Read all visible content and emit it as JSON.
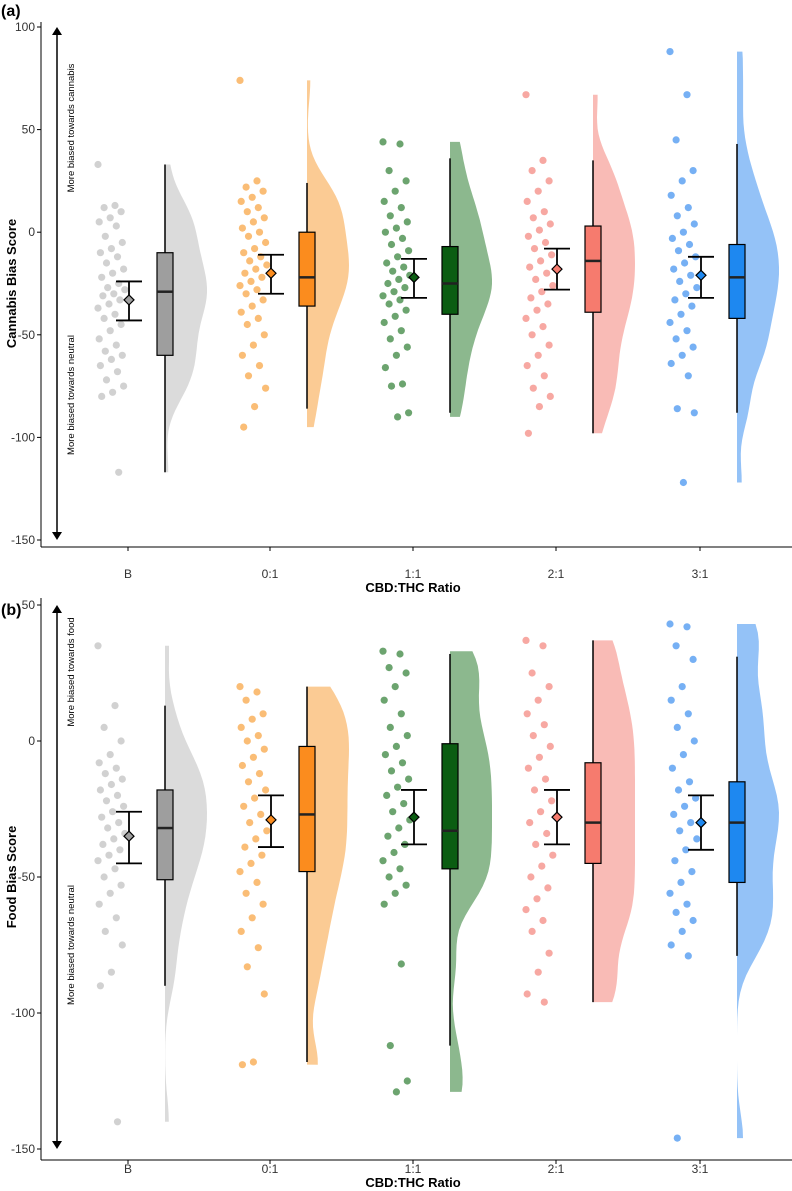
{
  "chart_data": [
    {
      "panel": "(a)",
      "type": "raincloud",
      "ylabel": "Cannabis Bias Score",
      "xlabel": "CBD:THC Ratio",
      "ylim": [
        -150,
        100
      ],
      "yticks": [
        100,
        50,
        0,
        -50,
        -100,
        -150
      ],
      "annotations": [
        "More biased towards cannabis",
        "More biased towards neutral"
      ],
      "categories": [
        {
          "label": "B",
          "color": "#bdbdbd",
          "box_fill": "#9e9e9e",
          "box": {
            "q1": -60,
            "median": -29,
            "q3": -10,
            "whisker_low": -117,
            "whisker_high": 33
          },
          "mean": -33,
          "ci": [
            -43,
            -24
          ],
          "points": [
            33,
            13,
            12,
            10,
            7,
            5,
            3,
            -2,
            -5,
            -8,
            -10,
            -12,
            -15,
            -18,
            -20,
            -22,
            -25,
            -27,
            -28,
            -30,
            -31,
            -33,
            -35,
            -37,
            -40,
            -42,
            -45,
            -48,
            -52,
            -55,
            -58,
            -60,
            -62,
            -65,
            -68,
            -72,
            -75,
            -78,
            -80,
            -117
          ]
        },
        {
          "label": "0:1",
          "color": "#f8a13c",
          "box_fill": "#fb8c1e",
          "box": {
            "q1": -36,
            "median": -22,
            "q3": 0,
            "whisker_low": -86,
            "whisker_high": 24
          },
          "mean": -20,
          "ci": [
            -30,
            -11
          ],
          "points": [
            74,
            25,
            22,
            20,
            17,
            15,
            12,
            10,
            7,
            5,
            2,
            0,
            -2,
            -5,
            -8,
            -10,
            -12,
            -14,
            -16,
            -18,
            -20,
            -22,
            -24,
            -26,
            -28,
            -30,
            -33,
            -36,
            -39,
            -42,
            -45,
            -50,
            -55,
            -60,
            -65,
            -70,
            -76,
            -85,
            -95
          ]
        },
        {
          "label": "1:1",
          "color": "#2e7d32",
          "box_fill": "#0b5d12",
          "box": {
            "q1": -40,
            "median": -25,
            "q3": -7,
            "whisker_low": -88,
            "whisker_high": 36
          },
          "mean": -22,
          "ci": [
            -32,
            -13
          ],
          "points": [
            44,
            43,
            30,
            25,
            20,
            15,
            12,
            8,
            5,
            2,
            0,
            -3,
            -6,
            -9,
            -12,
            -15,
            -17,
            -19,
            -21,
            -23,
            -25,
            -27,
            -29,
            -31,
            -33,
            -35,
            -38,
            -41,
            -44,
            -48,
            -52,
            -56,
            -60,
            -66,
            -74,
            -75,
            -88,
            -90
          ]
        },
        {
          "label": "2:1",
          "color": "#f4837a",
          "box_fill": "#f67b6e",
          "box": {
            "q1": -39,
            "median": -14,
            "q3": 3,
            "whisker_low": -98,
            "whisker_high": 35
          },
          "mean": -18,
          "ci": [
            -28,
            -8
          ],
          "points": [
            67,
            35,
            30,
            25,
            20,
            15,
            10,
            7,
            4,
            1,
            -2,
            -5,
            -8,
            -11,
            -14,
            -17,
            -20,
            -23,
            -26,
            -29,
            -32,
            -35,
            -38,
            -42,
            -46,
            -50,
            -55,
            -60,
            -65,
            -70,
            -76,
            -80,
            -85,
            -98
          ]
        },
        {
          "label": "3:1",
          "color": "#3c8ff0",
          "box_fill": "#1e88f0",
          "box": {
            "q1": -42,
            "median": -22,
            "q3": -6,
            "whisker_low": -88,
            "whisker_high": 43
          },
          "mean": -21,
          "ci": [
            -32,
            -12
          ],
          "points": [
            88,
            67,
            45,
            30,
            25,
            18,
            12,
            8,
            4,
            0,
            -3,
            -6,
            -9,
            -12,
            -15,
            -18,
            -21,
            -24,
            -27,
            -30,
            -33,
            -36,
            -40,
            -44,
            -48,
            -52,
            -56,
            -60,
            -64,
            -70,
            -86,
            -88,
            -122
          ]
        }
      ]
    },
    {
      "panel": "(b)",
      "type": "raincloud",
      "ylabel": "Food Bias Score",
      "xlabel": "CBD:THC Ratio",
      "ylim": [
        -150,
        50
      ],
      "yticks": [
        50,
        0,
        -50,
        -100,
        -150
      ],
      "annotations": [
        "More biased towards food",
        "More biased towards neutral"
      ],
      "categories": [
        {
          "label": "B",
          "color": "#bdbdbd",
          "box_fill": "#9e9e9e",
          "box": {
            "q1": -51,
            "median": -32,
            "q3": -18,
            "whisker_low": -90,
            "whisker_high": 13
          },
          "mean": -35,
          "ci": [
            -45,
            -26
          ],
          "points": [
            35,
            13,
            5,
            0,
            -5,
            -8,
            -10,
            -12,
            -14,
            -16,
            -18,
            -20,
            -22,
            -24,
            -26,
            -28,
            -30,
            -32,
            -34,
            -36,
            -38,
            -40,
            -42,
            -44,
            -47,
            -50,
            -53,
            -56,
            -60,
            -65,
            -70,
            -75,
            -85,
            -90,
            -140
          ]
        },
        {
          "label": "0:1",
          "color": "#f8a13c",
          "box_fill": "#fb8c1e",
          "box": {
            "q1": -48,
            "median": -27,
            "q3": -2,
            "whisker_low": -118,
            "whisker_high": 20
          },
          "mean": -29,
          "ci": [
            -39,
            -20
          ],
          "points": [
            20,
            18,
            15,
            10,
            8,
            5,
            2,
            0,
            -3,
            -6,
            -9,
            -12,
            -15,
            -18,
            -21,
            -24,
            -27,
            -30,
            -33,
            -36,
            -39,
            -42,
            -45,
            -48,
            -52,
            -56,
            -60,
            -65,
            -70,
            -76,
            -83,
            -93,
            -118,
            -119
          ]
        },
        {
          "label": "1:1",
          "color": "#2e7d32",
          "box_fill": "#0b5d12",
          "box": {
            "q1": -47,
            "median": -33,
            "q3": -1,
            "whisker_low": -112,
            "whisker_high": 32
          },
          "mean": -28,
          "ci": [
            -38,
            -18
          ],
          "points": [
            33,
            32,
            27,
            25,
            20,
            15,
            10,
            5,
            2,
            -2,
            -5,
            -8,
            -11,
            -14,
            -17,
            -20,
            -23,
            -26,
            -29,
            -32,
            -35,
            -38,
            -41,
            -44,
            -47,
            -50,
            -53,
            -56,
            -60,
            -82,
            -112,
            -125,
            -129
          ]
        },
        {
          "label": "2:1",
          "color": "#f4837a",
          "box_fill": "#f67b6e",
          "box": {
            "q1": -45,
            "median": -30,
            "q3": -8,
            "whisker_low": -96,
            "whisker_high": 37
          },
          "mean": -28,
          "ci": [
            -38,
            -18
          ],
          "points": [
            37,
            35,
            25,
            20,
            15,
            10,
            6,
            2,
            -2,
            -6,
            -10,
            -14,
            -18,
            -22,
            -26,
            -30,
            -34,
            -38,
            -42,
            -46,
            -50,
            -54,
            -58,
            -62,
            -66,
            -70,
            -78,
            -85,
            -93,
            -96
          ]
        },
        {
          "label": "3:1",
          "color": "#3c8ff0",
          "box_fill": "#1e88f0",
          "box": {
            "q1": -52,
            "median": -30,
            "q3": -15,
            "whisker_low": -79,
            "whisker_high": 31
          },
          "mean": -30,
          "ci": [
            -40,
            -20
          ],
          "points": [
            43,
            42,
            35,
            30,
            20,
            15,
            10,
            5,
            0,
            -5,
            -10,
            -15,
            -18,
            -21,
            -24,
            -27,
            -30,
            -33,
            -36,
            -40,
            -44,
            -48,
            -52,
            -56,
            -60,
            -63,
            -66,
            -70,
            -75,
            -79,
            -146
          ]
        }
      ]
    }
  ]
}
